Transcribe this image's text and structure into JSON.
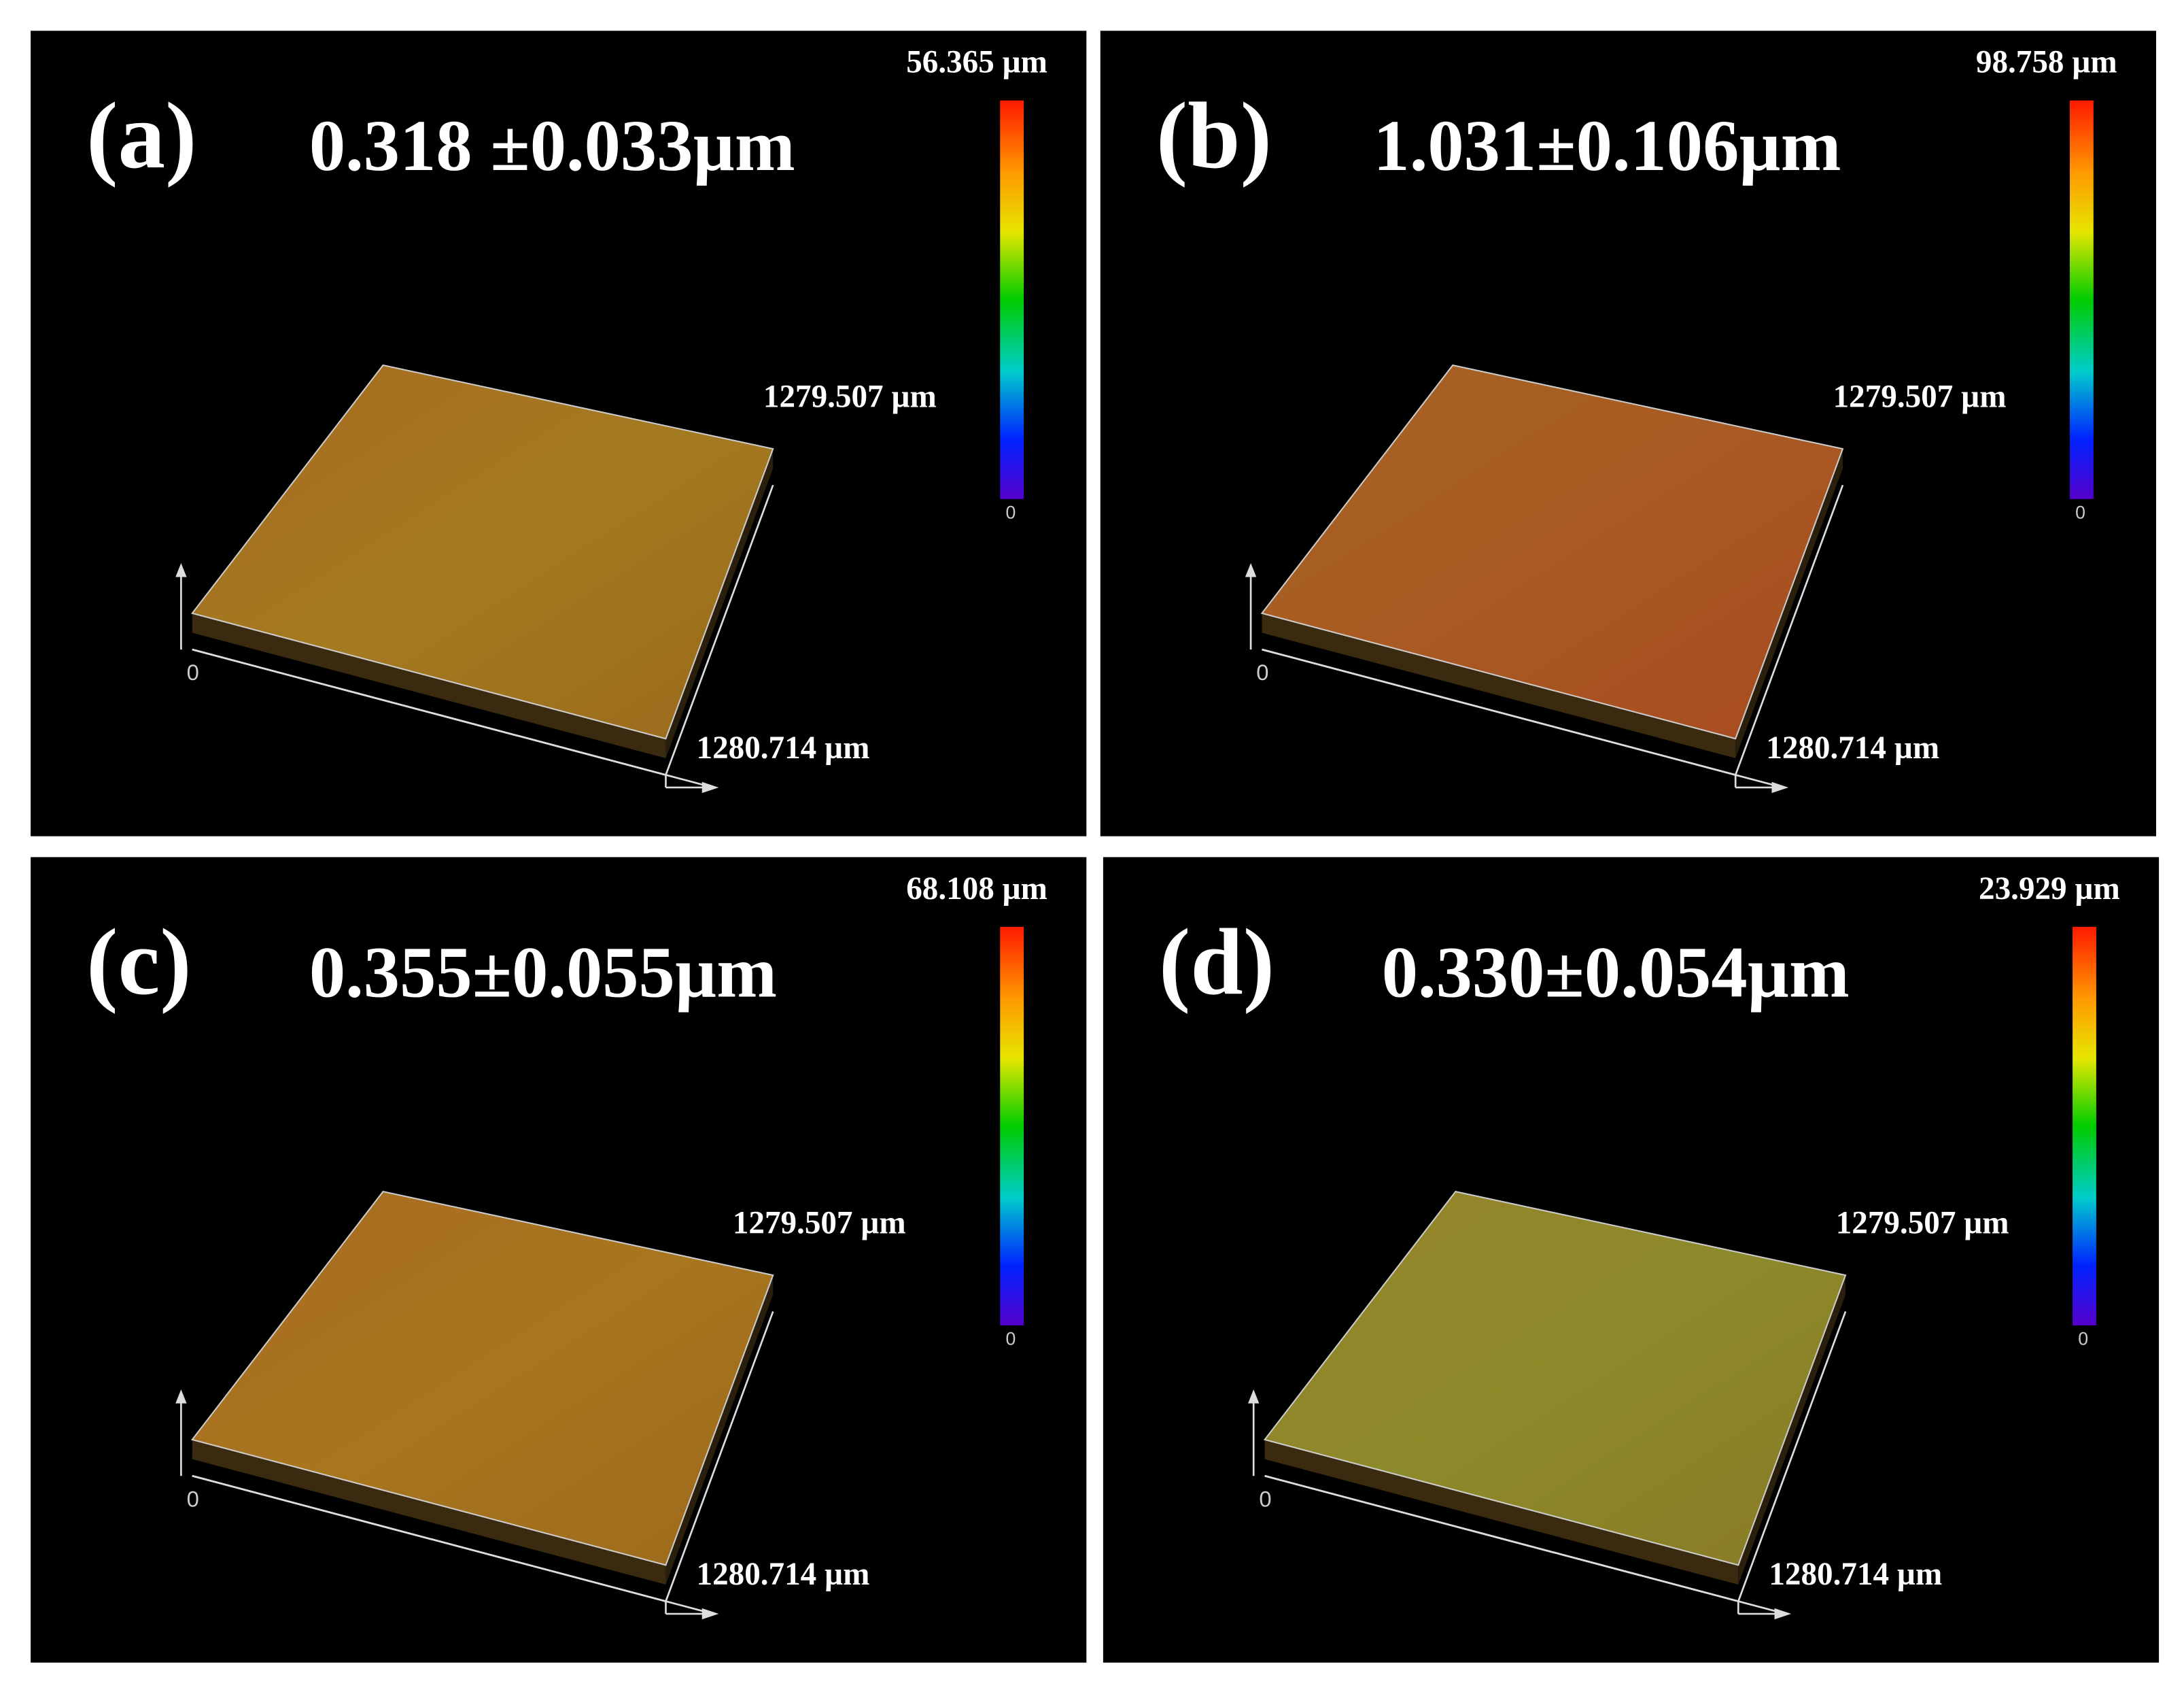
{
  "panels": [
    {
      "label": "(a)",
      "roughness": "0.318 ±0.033µm",
      "scale_max": "56.365 µm",
      "scale_min": "0",
      "y_extent": "1279.507 µm",
      "x_extent": "1280.714 µm",
      "origin": "0"
    },
    {
      "label": "(b)",
      "roughness": "1.031±0.106µm",
      "scale_max": "98.758 µm",
      "scale_min": "0",
      "y_extent": "1279.507 µm",
      "x_extent": "1280.714 µm",
      "origin": "0"
    },
    {
      "label": "(c)",
      "roughness": "0.355±0.055µm",
      "scale_max": "68.108 µm",
      "scale_min": "0",
      "y_extent": "1279.507 µm",
      "x_extent": "1280.714 µm",
      "origin": "0"
    },
    {
      "label": "(d)",
      "roughness": "0.330±0.054µm",
      "scale_max": "23.929 µm",
      "scale_min": "0",
      "y_extent": "1279.507 µm",
      "x_extent": "1280.714 µm",
      "origin": "0"
    }
  ]
}
